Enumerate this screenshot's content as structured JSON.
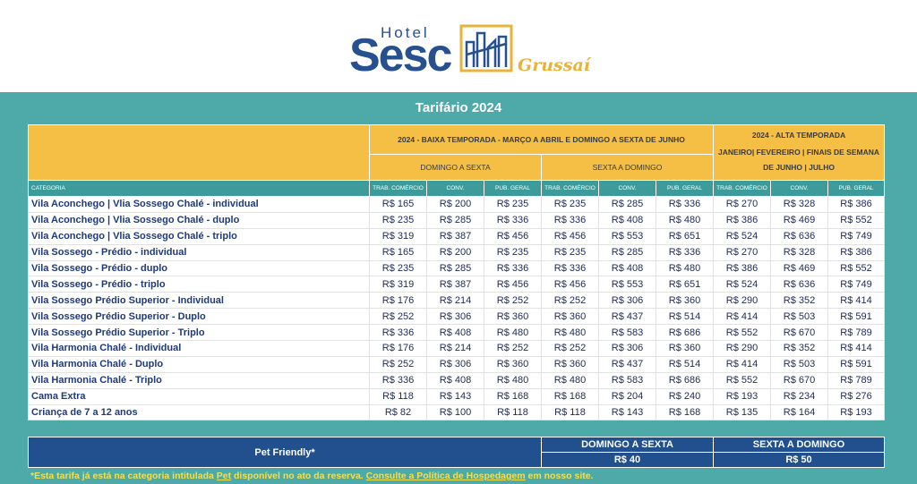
{
  "logo": {
    "hotel": "Hotel",
    "brand": "Sesc",
    "place": "Grussaí"
  },
  "title": "Tarifário 2024",
  "table": {
    "low_season": {
      "title": "2024 - BAIXA TEMPORADA  - MARÇO A ABRIL E DOMINGO A SEXTA DE JUNHO",
      "periods": [
        "DOMINGO A SEXTA",
        "SEXTA A DOMINGO"
      ]
    },
    "high_season": {
      "title": "2024 - ALTA TEMPORADA",
      "period": "JANEIRO| FEVEREIRO | FINAIS DE SEMANA DE JUNHO | JULHO"
    },
    "columns": [
      "CATEGORIA",
      "TRAB. COMÉRCIO",
      "CONV.",
      "PUB. GERAL",
      "TRAB. COMÉRCIO",
      "CONV.",
      "PUB. GERAL",
      "TRAB. COMÉRCIO",
      "CONV.",
      "PUB. GERAL"
    ],
    "rows": [
      [
        "Vila Aconchego | Vlia Sossego Chalé - individual",
        "R$ 165",
        "R$ 200",
        "R$ 235",
        "R$ 235",
        "R$ 285",
        "R$ 336",
        "R$ 270",
        "R$ 328",
        "R$ 386"
      ],
      [
        "Vila Aconchego | Vlia Sossego Chalé - duplo",
        "R$ 235",
        "R$ 285",
        "R$ 336",
        "R$ 336",
        "R$ 408",
        "R$ 480",
        "R$ 386",
        "R$ 469",
        "R$ 552"
      ],
      [
        "Vila Aconchego | Vlia Sossego Chalé - triplo",
        "R$ 319",
        "R$ 387",
        "R$ 456",
        "R$ 456",
        "R$ 553",
        "R$ 651",
        "R$ 524",
        "R$ 636",
        "R$ 749"
      ],
      [
        "Vila Sossego - Prédio - individual",
        "R$ 165",
        "R$ 200",
        "R$ 235",
        "R$ 235",
        "R$ 285",
        "R$ 336",
        "R$ 270",
        "R$ 328",
        "R$ 386"
      ],
      [
        "Vila Sossego - Prédio - duplo",
        "R$ 235",
        "R$ 285",
        "R$ 336",
        "R$ 336",
        "R$ 408",
        "R$ 480",
        "R$ 386",
        "R$ 469",
        "R$ 552"
      ],
      [
        "Vila Sossego - Prédio - triplo",
        "R$ 319",
        "R$ 387",
        "R$ 456",
        "R$ 456",
        "R$ 553",
        "R$ 651",
        "R$ 524",
        "R$ 636",
        "R$ 749"
      ],
      [
        "Vila Sossego Prédio Superior - Individual",
        "R$ 176",
        "R$ 214",
        "R$ 252",
        "R$ 252",
        "R$ 306",
        "R$ 360",
        "R$ 290",
        "R$ 352",
        "R$ 414"
      ],
      [
        "Vila Sossego Prédio Superior - Duplo",
        "R$ 252",
        "R$ 306",
        "R$ 360",
        "R$ 360",
        "R$ 437",
        "R$ 514",
        "R$ 414",
        "R$ 503",
        "R$ 591"
      ],
      [
        "Vila Sossego Prédio Superior - Triplo",
        "R$ 336",
        "R$ 408",
        "R$ 480",
        "R$ 480",
        "R$ 583",
        "R$ 686",
        "R$ 552",
        "R$ 670",
        "R$ 789"
      ],
      [
        "Vila Harmonia Chalé - Individual",
        "R$ 176",
        "R$ 214",
        "R$ 252",
        "R$ 252",
        "R$ 306",
        "R$ 360",
        "R$ 290",
        "R$ 352",
        "R$ 414"
      ],
      [
        "Vila Harmonia Chalé - Duplo",
        "R$ 252",
        "R$ 306",
        "R$ 360",
        "R$ 360",
        "R$ 437",
        "R$ 514",
        "R$ 414",
        "R$ 503",
        "R$ 591"
      ],
      [
        "Vila Harmonia Chalé - Triplo",
        "R$ 336",
        "R$ 408",
        "R$ 480",
        "R$ 480",
        "R$ 583",
        "R$ 686",
        "R$ 552",
        "R$ 670",
        "R$ 789"
      ],
      [
        "Cama Extra",
        "R$ 118",
        "R$ 143",
        "R$ 168",
        "R$ 168",
        "R$ 204",
        "R$ 240",
        "R$ 193",
        "R$ 234",
        "R$ 276"
      ],
      [
        "Criança de 7 a 12 anos",
        "R$ 82",
        "R$ 100",
        "R$ 118",
        "R$ 118",
        "R$ 143",
        "R$ 168",
        "R$ 135",
        "R$ 164",
        "R$ 193"
      ]
    ]
  },
  "pet": {
    "label": "Pet Friendly*",
    "options": [
      {
        "period": "DOMINGO A SEXTA",
        "price": "R$ 40"
      },
      {
        "period": "SEXTA A DOMINGO",
        "price": "R$ 50"
      }
    ]
  },
  "footnote": [
    "*Esta tarifa já está na categoria intitulada ",
    "Pet",
    " disponível no ato da reserva. ",
    "Consulte a Política de Hospedagem",
    " em nosso site."
  ]
}
